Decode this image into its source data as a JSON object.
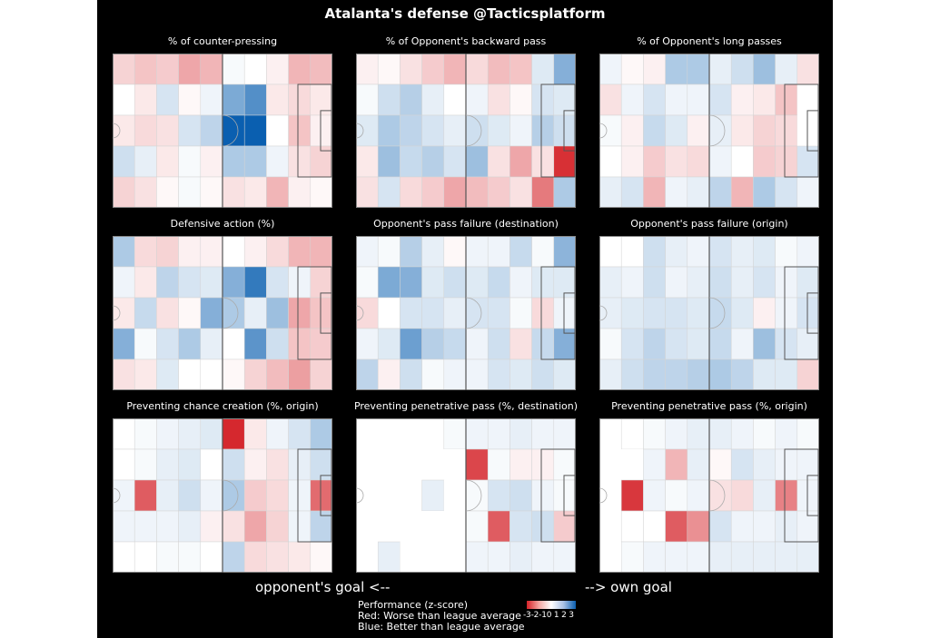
{
  "title": "Atalanta's defense @Tacticsplatform",
  "arrows": {
    "left": "opponent's goal <--",
    "right": "--> own goal"
  },
  "legend": {
    "title": "Performance (z-score)",
    "red": "Red: Worse than league average",
    "blue": "Blue: Better than league average",
    "ticks": "-3-2-10 1 2 3"
  },
  "colors": {
    "worst": "#d42127",
    "neutral": "#ffffff",
    "best": "#0a5fb0",
    "masked": "#777777",
    "line": "#888888"
  },
  "chart_data": [
    {
      "type": "heatmap",
      "title": "% of counter-pressing",
      "vmin": -3,
      "vmax": 3,
      "values": [
        [
          -0.6,
          -0.8,
          -0.7,
          -1.2,
          -1.0,
          0.1,
          0,
          -0.2,
          -1.0,
          -0.9
        ],
        [
          0,
          -0.3,
          0.5,
          -0.1,
          0.2,
          1.6,
          2.1,
          -0.3,
          -0.5,
          -0.3
        ],
        [
          -0.3,
          -0.5,
          -0.4,
          0.5,
          0.8,
          3.0,
          3.0,
          0,
          -0.8,
          -0.2
        ],
        [
          0.6,
          0.3,
          -0.3,
          0.1,
          -0.2,
          1.0,
          1.0,
          0.2,
          -0.4,
          -0.6
        ],
        [
          -0.6,
          -0.4,
          -0.1,
          0.1,
          -0.1,
          -0.4,
          -0.3,
          -1.0,
          -0.2,
          -0.1
        ]
      ]
    },
    {
      "type": "heatmap",
      "title": "% of Opponent's backward pass",
      "vmin": -3,
      "vmax": 3,
      "values": [
        [
          -0.2,
          -0.1,
          -0.4,
          -0.7,
          -1.0,
          -0.5,
          -0.9,
          -0.8,
          0.4,
          1.5
        ],
        [
          0.1,
          0.6,
          0.9,
          0.3,
          0,
          0.2,
          -0.4,
          -0.1,
          0.5,
          0.4
        ],
        [
          0.4,
          1.0,
          0.8,
          0.5,
          0.3,
          0.6,
          0.4,
          0.2,
          0.9,
          0.6
        ],
        [
          -0.3,
          1.2,
          0.7,
          0.9,
          0.5,
          1.2,
          -0.4,
          -1.2,
          -0.4,
          -2.8
        ],
        [
          -0.4,
          0.5,
          -0.5,
          -0.7,
          -1.2,
          -0.9,
          -0.7,
          -0.4,
          -1.8,
          1.0
        ]
      ]
    },
    {
      "type": "heatmap",
      "title": "% of Opponent's long passes",
      "vmin": -3,
      "vmax": 3,
      "values": [
        [
          0.2,
          -0.1,
          -0.2,
          1.0,
          1.0,
          0.3,
          0.6,
          1.2,
          0.3,
          -0.4
        ],
        [
          -0.4,
          0.2,
          0.5,
          0.2,
          0.2,
          0.5,
          -0.2,
          -0.3,
          -0.8,
          null
        ],
        [
          0.1,
          -0.2,
          0.7,
          0.4,
          -0.2,
          0.3,
          -0.3,
          -0.6,
          -0.5,
          null
        ],
        [
          0,
          -0.2,
          -0.7,
          -0.4,
          -0.5,
          0.2,
          0,
          -0.7,
          -0.6,
          0.5
        ],
        [
          0.3,
          0.5,
          -1.0,
          0.2,
          0.3,
          0.8,
          -1.0,
          1.0,
          0.5,
          0.2
        ]
      ]
    },
    {
      "type": "heatmap",
      "title": "Defensive action (%)",
      "vmin": -3,
      "vmax": 3,
      "values": [
        [
          1.0,
          -0.5,
          -0.6,
          -0.2,
          -0.2,
          0,
          -0.2,
          -0.5,
          -1.0,
          -1.0
        ],
        [
          0.2,
          -0.3,
          0.8,
          0.5,
          0.4,
          1.5,
          2.5,
          0.5,
          0.2,
          -0.6
        ],
        [
          -0.3,
          0.7,
          -0.4,
          -0.1,
          1.5,
          1.0,
          0.3,
          1.2,
          -1.2,
          -0.8
        ],
        [
          1.5,
          0.1,
          0.5,
          1.0,
          0.3,
          0,
          2.0,
          0.6,
          -0.8,
          -0.7
        ],
        [
          -0.4,
          -0.3,
          0.4,
          0,
          0,
          -0.1,
          -0.6,
          -0.9,
          -1.3,
          -0.6
        ]
      ]
    },
    {
      "type": "heatmap",
      "title": "Opponent's pass failure (destination)",
      "vmin": -3,
      "vmax": 3,
      "values": [
        [
          0.2,
          0.1,
          0.9,
          0.3,
          -0.1,
          0.2,
          0.2,
          0.7,
          0.1,
          1.4
        ],
        [
          0.1,
          1.6,
          1.5,
          0.4,
          0.6,
          0.4,
          0.7,
          0.2,
          0.4,
          0.4
        ],
        [
          -0.5,
          0,
          0.5,
          0.5,
          0.3,
          0.5,
          0.5,
          0.1,
          -0.5,
          0.2
        ],
        [
          0.2,
          0.4,
          1.8,
          0.9,
          0.7,
          0.2,
          0.6,
          -0.4,
          0.7,
          1.5
        ],
        [
          0.8,
          -0.2,
          0.6,
          0.1,
          0.2,
          0.2,
          0.5,
          0.4,
          0.6,
          0.4
        ]
      ]
    },
    {
      "type": "heatmap",
      "title": "Opponent's pass failure (origin)",
      "vmin": -3,
      "vmax": 3,
      "values": [
        [
          0,
          0,
          0.6,
          0.3,
          0.2,
          0.5,
          0.3,
          0.4,
          0.1,
          0.2
        ],
        [
          0.3,
          0.2,
          0.6,
          0.2,
          0.3,
          0.6,
          0.3,
          0.5,
          0.2,
          0.4
        ],
        [
          0.3,
          0.4,
          0.5,
          0.5,
          0.4,
          0.7,
          0.4,
          -0.2,
          0.2,
          0.5
        ],
        [
          0.1,
          0.5,
          0.8,
          0.5,
          0.4,
          0.7,
          0.2,
          1.2,
          0.5,
          0.3
        ],
        [
          0.3,
          0.6,
          0.8,
          0.8,
          0.9,
          1.0,
          0.8,
          0.4,
          0.4,
          -0.6
        ]
      ]
    },
    {
      "type": "heatmap",
      "title": "Preventing chance creation (%, origin)",
      "vmin": -3,
      "vmax": 3,
      "values": [
        [
          0,
          0.1,
          0.2,
          0.3,
          0.4,
          -2.9,
          -0.3,
          0.2,
          0.5,
          1.0
        ],
        [
          0,
          0.1,
          0.3,
          0.4,
          0,
          0.6,
          -0.2,
          -0.4,
          0.3,
          0.6
        ],
        [
          0.2,
          -2.2,
          0.3,
          0.6,
          0.2,
          1.0,
          -0.7,
          -0.5,
          0.2,
          -2.0
        ],
        [
          0.2,
          0.2,
          0.2,
          0.3,
          -0.2,
          -0.4,
          -1.2,
          -0.6,
          0.2,
          0.8
        ],
        [
          0,
          0,
          0.1,
          0.1,
          0,
          0.8,
          -0.5,
          -0.4,
          -0.3,
          -0.1
        ]
      ]
    },
    {
      "type": "heatmap",
      "title": "Preventing penetrative pass (%, destination)",
      "vmin": -3,
      "vmax": 3,
      "values": [
        [
          null,
          null,
          null,
          null,
          0.1,
          0.2,
          0.2,
          0.3,
          0.2,
          0.2
        ],
        [
          null,
          null,
          null,
          null,
          null,
          -2.5,
          0.1,
          -0.2,
          -0.2,
          0.1
        ],
        [
          null,
          null,
          null,
          0.3,
          null,
          0.1,
          0.5,
          0.6,
          0.2,
          0.1
        ],
        [
          null,
          null,
          null,
          null,
          null,
          0.1,
          -2.2,
          0.5,
          0.6,
          -0.7
        ],
        [
          null,
          0.3,
          null,
          null,
          null,
          0.2,
          0.2,
          0.3,
          0.2,
          0.2
        ]
      ]
    },
    {
      "type": "heatmap",
      "title": "Preventing penetrative pass (%, origin)",
      "vmin": -3,
      "vmax": 3,
      "values": [
        [
          null,
          0,
          0.1,
          0.2,
          0.3,
          0.3,
          0.2,
          0.1,
          0.2,
          0.1
        ],
        [
          null,
          null,
          0.2,
          -1.0,
          0.3,
          -0.1,
          0.5,
          0.3,
          0.2,
          0.2
        ],
        [
          null,
          -2.7,
          0.2,
          0.1,
          0.2,
          -0.4,
          -0.5,
          0.3,
          -1.7,
          0.2
        ],
        [
          null,
          0,
          0,
          -2.2,
          -1.5,
          0.5,
          0.2,
          0.2,
          0.3,
          0.2
        ],
        [
          null,
          0.1,
          0.2,
          0.2,
          0.2,
          0.3,
          0.3,
          0.3,
          0.3,
          0.3
        ]
      ]
    }
  ]
}
